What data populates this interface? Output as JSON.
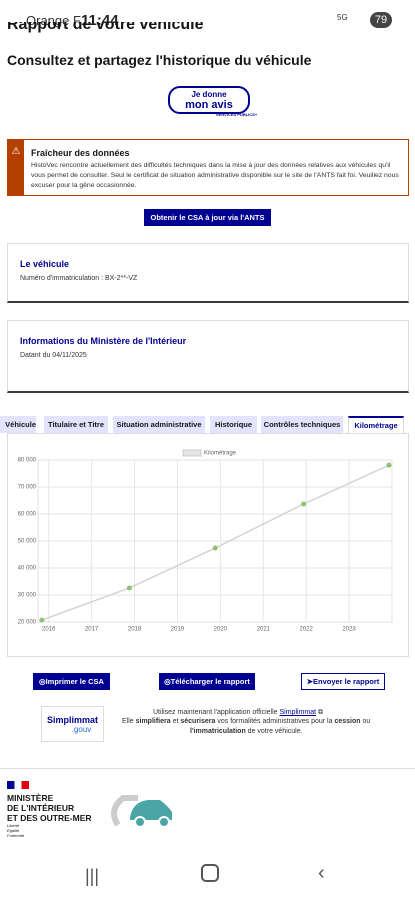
{
  "status_bar": {
    "carrier": "Orange F",
    "time": "11:44",
    "network": "5G",
    "battery": "79"
  },
  "header": {
    "title": "Rapport de votre véhicule",
    "subtitle": "Consultez et partagez l'historique du véhicule"
  },
  "feedback": {
    "line1": "Je donne",
    "line2": "mon avis",
    "badge": "SERVICES PUBLICS+"
  },
  "alert": {
    "title": "Fraîcheur des données",
    "text": "HistoVec rencontre actuellement des difficultés techniques dans la mise à jour des données relatives aux véhicules qu'il vous permet de consulter. Seul le certificat de situation administrative disponible sur le site de l'ANTS fait foi. Veuillez nous excuser pour la gêne occasionnée."
  },
  "ants_button": "Obtenir le CSA à jour via l'ANTS",
  "vehicle_card": {
    "title": "Le véhicule",
    "text": "Numéro d'immatriculation : BX-2**-VZ"
  },
  "ministry_card": {
    "title": "Informations du Ministère de l'Intérieur",
    "text": "Datant du 04/11/2025"
  },
  "tabs": [
    "Véhicule",
    "Titulaire et Titre",
    "Situation administrative",
    "Historique",
    "Contrôles techniques",
    "Kilométrage"
  ],
  "chart_data": {
    "type": "line",
    "x": [
      2015.84,
      2017.88,
      2019.88,
      2021.94,
      2023.93
    ],
    "series": [
      {
        "name": "Kilométrage",
        "color": "#8dc26f",
        "line_color": "#d3d3d3",
        "values": [
          20700,
          32600,
          47400,
          63700,
          78100
        ]
      }
    ],
    "xlim": [
      2015.75,
      2024
    ],
    "xticks": [
      2016,
      2017,
      2018,
      2019,
      2020,
      2021,
      2022,
      2023
    ],
    "ylim": [
      20000,
      80000
    ],
    "yticks": [
      {
        "value": 20000,
        "label": "20 000"
      },
      {
        "value": 30000,
        "label": "30 000"
      },
      {
        "value": 40000,
        "label": "40 000"
      },
      {
        "value": 50000,
        "label": "50 000"
      },
      {
        "value": 60000,
        "label": "60 000"
      },
      {
        "value": 70000,
        "label": "70 000"
      },
      {
        "value": 80000,
        "label": "80 000"
      }
    ],
    "grid": true
  },
  "actions": [
    "Imprimer le CSA",
    "Télécharger le rapport",
    "Envoyer le rapport"
  ],
  "simplimmat": {
    "logo": "Simplimmat",
    "logo_suffix": ".gouv",
    "line1": "Utilisez maintenant l'application officielle",
    "link": "Simplimmat",
    "line2": [
      "Elle ",
      "simplifiera",
      " et ",
      "sécurisera",
      " vos formalités administratives pour la ",
      "cession",
      " ou"
    ],
    "line3": [
      "l'immatriculation",
      " de votre véhicule."
    ]
  },
  "footer": {
    "ministry": [
      "MINISTÈRE",
      "DE L'INTÉRIEUR",
      "ET DES OUTRE-MER"
    ],
    "motto": [
      "Liberté",
      "Égalité",
      "Fraternité"
    ]
  }
}
